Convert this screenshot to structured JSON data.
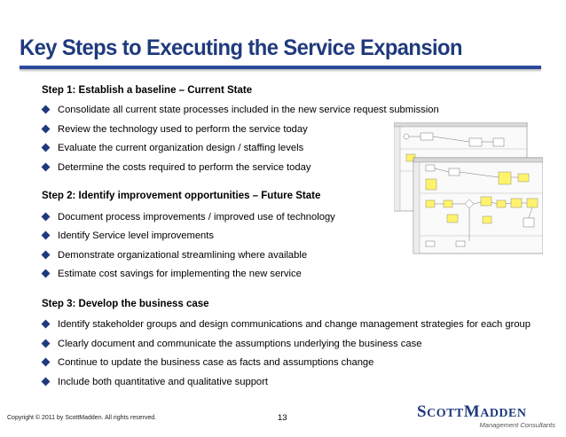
{
  "slide": {
    "title": "Key Steps to Executing the Service Expansion"
  },
  "steps": [
    {
      "heading": "Step 1: Establish a baseline – Current State",
      "bullets": [
        "Consolidate all current state processes included in the new service request submission",
        "Review the technology used to perform the service today",
        "Evaluate the current organization design / staffing levels",
        "Determine the costs required to perform the service today"
      ]
    },
    {
      "heading": "Step 2: Identify improvement opportunities – Future State",
      "bullets": [
        "Document process improvements / improved use of technology",
        "Identify Service level improvements",
        "Demonstrate organizational streamlining where available",
        "Estimate cost savings for implementing the new service"
      ]
    },
    {
      "heading": "Step 3: Develop the business case",
      "bullets": [
        "Identify stakeholder groups and design communications and change management strategies for each group",
        "Clearly document and communicate the assumptions underlying the business case",
        "Continue to update the business case as facts and assumptions change",
        "Include both quantitative and qualitative support"
      ]
    }
  ],
  "footer": {
    "copyright": "Copyright © 2011 by ScottMadden. All rights reserved.",
    "page_number": "13",
    "logo_part1_big": "S",
    "logo_part1_small": "COTT",
    "logo_part2_big": "M",
    "logo_part2_small": "ADDEN",
    "logo_tagline": "Management Consultants"
  },
  "colors": {
    "title": "#1f3a7d",
    "bullet": "#1f3a7d",
    "diagram_yellow": "#fff36b"
  }
}
